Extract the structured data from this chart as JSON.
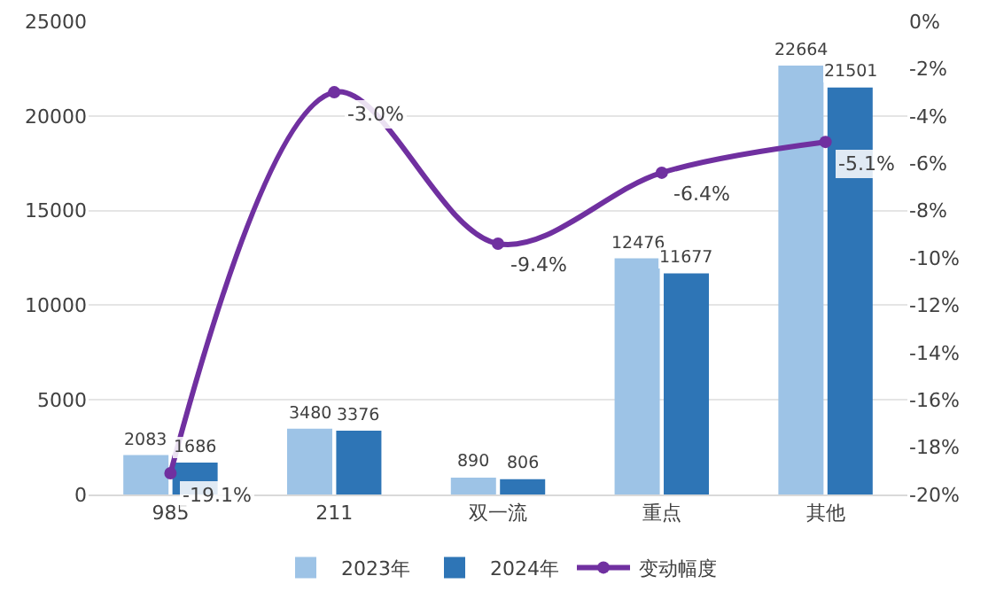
{
  "chart_data": {
    "type": "bar",
    "categories": [
      "985",
      "211",
      "双一流",
      "重点",
      "其他"
    ],
    "series": [
      {
        "name": "2023年",
        "color": "#9dc3e6",
        "values": [
          2083,
          3480,
          890,
          12476,
          22664
        ],
        "value_labels": [
          "2083",
          "3480",
          "890",
          "12476",
          "22664"
        ]
      },
      {
        "name": "2024年",
        "color": "#2e75b6",
        "values": [
          1686,
          3376,
          806,
          11677,
          21501
        ],
        "value_labels": [
          "1686",
          "3376",
          "806",
          "11677",
          "21501"
        ]
      },
      {
        "name": "变动幅度",
        "type": "line",
        "axis": "y2",
        "color": "#7030a0",
        "values": [
          -19.1,
          -3.0,
          -9.4,
          -6.4,
          -5.1
        ],
        "value_labels": [
          "-19.1%",
          "-3.0%",
          "-9.4%",
          "-6.4%",
          "-5.1%"
        ]
      }
    ],
    "ylim": [
      0,
      25000
    ],
    "yticks": [
      0,
      5000,
      10000,
      15000,
      20000,
      25000
    ],
    "y2lim": [
      -20,
      0
    ],
    "y2ticks": [
      {
        "value": 0,
        "label": "0%"
      },
      {
        "value": -2,
        "label": "-2%"
      },
      {
        "value": -4,
        "label": "-4%"
      },
      {
        "value": -6,
        "label": "-6%"
      },
      {
        "value": -8,
        "label": "-8%"
      },
      {
        "value": -10,
        "label": "-10%"
      },
      {
        "value": -12,
        "label": "-12%"
      },
      {
        "value": -14,
        "label": "-14%"
      },
      {
        "value": -16,
        "label": "-16%"
      },
      {
        "value": -18,
        "label": "-18%"
      },
      {
        "value": -20,
        "label": "-20%"
      }
    ],
    "grid": "y",
    "legend": "bottom",
    "marker": "circle",
    "line_style": "solid"
  }
}
